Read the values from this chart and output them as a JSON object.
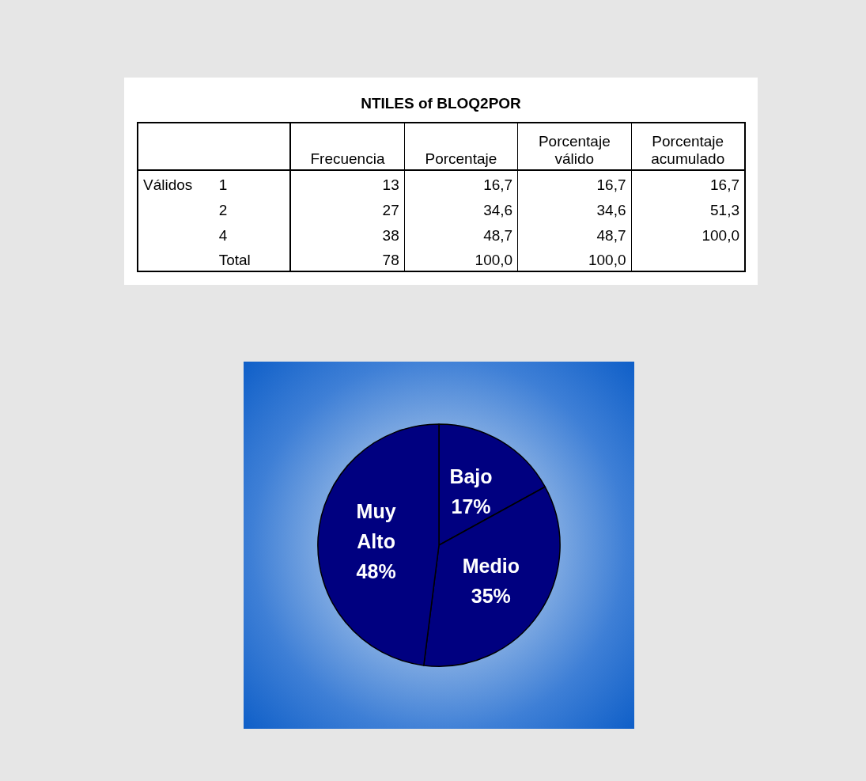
{
  "chart_data": [
    {
      "type": "other",
      "title": "NTILES of BLOQ2POR",
      "annotations": [
        "Válidos"
      ],
      "categories": [
        "Frecuencia",
        "Porcentaje",
        "Porcentaje válido",
        "Porcentaje acumulado"
      ],
      "y_categories": [
        "1",
        "2",
        "4",
        "Total"
      ],
      "cell_labels": [
        [
          "13",
          "16,7",
          "16,7",
          "16,7"
        ],
        [
          "27",
          "34,6",
          "34,6",
          "51,3"
        ],
        [
          "38",
          "48,7",
          "48,7",
          "100,0"
        ],
        [
          "78",
          "100,0",
          "100,0",
          null
        ]
      ]
    },
    {
      "type": "pie",
      "categories": [
        "Bajo",
        "Medio",
        "Muy Alto"
      ],
      "values": [
        17,
        35,
        48
      ],
      "colors": [
        "#000080",
        "#000080",
        "#000080"
      ],
      "value_labels": [
        "17%",
        "35%",
        "48%"
      ],
      "legend": false
    }
  ]
}
